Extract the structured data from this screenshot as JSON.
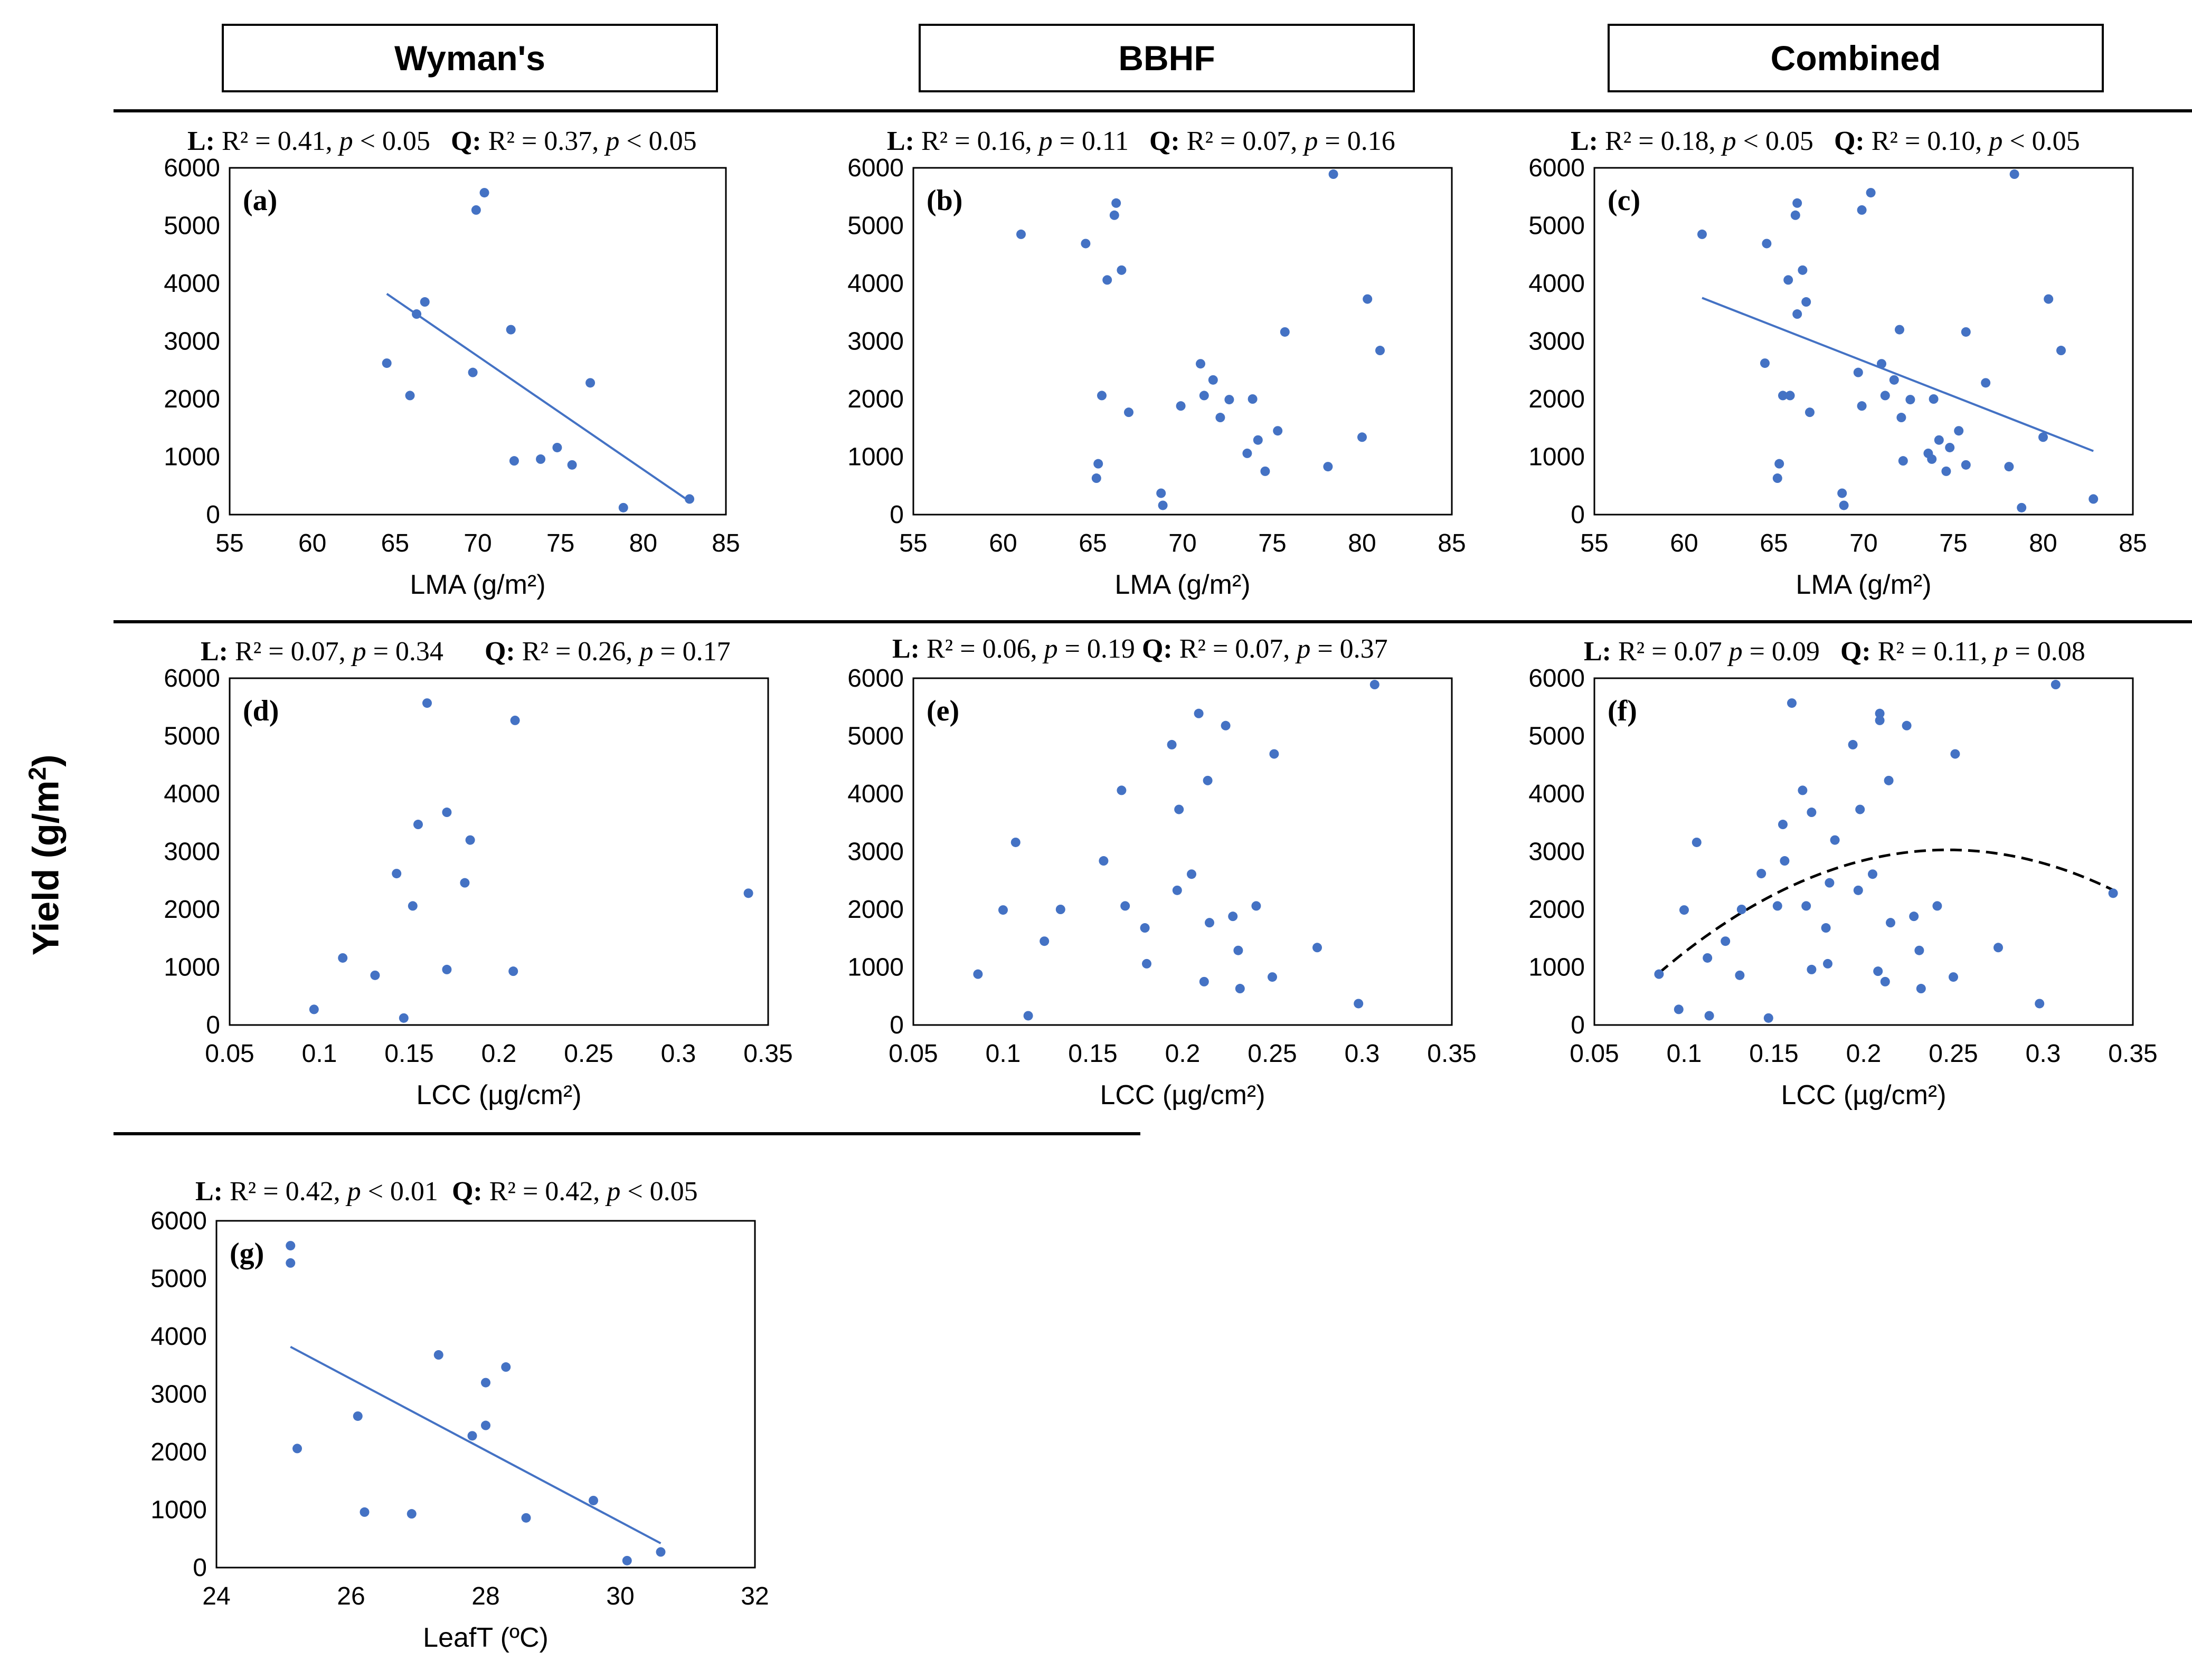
{
  "header": {
    "col1": "Wyman's",
    "col2": "BBHF",
    "col3": "Combined"
  },
  "y_axis_title": "Yield (g/m",
  "y_axis_title_sup": "2",
  "y_axis_title_end": ")",
  "colors": {
    "point": "#4472C4",
    "line": "#4472C4",
    "quad": "#000000"
  },
  "stats": {
    "a": {
      "L_lbl": "L:",
      "L_r2": "R² = 0.41, ",
      "L_p": "p",
      "L_val": " < 0.05",
      "Q_lbl": "Q:",
      "Q_r2": "R² = 0.37, ",
      "Q_p": "p",
      "Q_val": " < 0.05"
    },
    "b": {
      "L_lbl": "L:",
      "L_r2": "R² = 0.16, ",
      "L_p": "p",
      "L_val": " = 0.11",
      "Q_lbl": "Q:",
      "Q_r2": "R² = 0.07, ",
      "Q_p": "p",
      "Q_val": " = 0.16"
    },
    "c": {
      "L_lbl": "L:",
      "L_r2": "R² = 0.18, ",
      "L_p": "p",
      "L_val": " < 0.05",
      "Q_lbl": "Q:",
      "Q_r2": "R² = 0.10, ",
      "Q_p": "p",
      "Q_val": " < 0.05"
    },
    "d": {
      "L_lbl": "L:",
      "L_r2": "R² = 0.07, ",
      "L_p": "p",
      "L_val": " = 0.34",
      "Q_lbl": "Q:",
      "Q_r2": "R² = 0.26, ",
      "Q_p": "p",
      "Q_val": " = 0.17"
    },
    "e": {
      "L_lbl": "L:",
      "L_r2": "R² = 0.06, ",
      "L_p": "p",
      "L_val": " = 0.19",
      "Q_lbl": "Q:",
      "Q_r2": "R² = 0.07, ",
      "Q_p": "p",
      "Q_val": " = 0.37"
    },
    "f": {
      "L_lbl": "L:",
      "L_r2": "R² = 0.07 ",
      "L_p": "p",
      "L_val": " = 0.09",
      "Q_lbl": "Q:",
      "Q_r2": "R² = 0.11, ",
      "Q_p": "p",
      "Q_val": " = 0.08"
    },
    "g": {
      "L_lbl": "L:",
      "L_r2": "R² = 0.42, ",
      "L_p": "p",
      "L_val": " < 0.01",
      "Q_lbl": "Q:",
      "Q_r2": "R² = 0.42, ",
      "Q_p": "p",
      "Q_val": " < 0.05"
    }
  },
  "chart_data": [
    {
      "id": "a",
      "type": "scatter",
      "panel_label": "(a)",
      "xlabel": "LMA (g/m²)",
      "xlim": [
        55,
        85
      ],
      "xticks": [
        55,
        60,
        65,
        70,
        75,
        80,
        85
      ],
      "ylim": [
        0,
        6000
      ],
      "yticks": [
        0,
        1000,
        2000,
        3000,
        4000,
        5000,
        6000
      ],
      "x": [
        64.5,
        65.9,
        66.3,
        66.8,
        69.7,
        69.9,
        70.4,
        72.0,
        72.2,
        73.8,
        74.8,
        75.7,
        76.8,
        78.8,
        82.8
      ],
      "y": [
        2620,
        2060,
        3470,
        3680,
        2460,
        5270,
        5570,
        3200,
        930,
        960,
        1160,
        860,
        2280,
        120,
        270
      ],
      "trend": {
        "kind": "linear",
        "x": [
          64.5,
          82.8
        ],
        "y": [
          3820,
          230
        ]
      }
    },
    {
      "id": "b",
      "type": "scatter",
      "panel_label": "(b)",
      "xlabel": "LMA (g/m²)",
      "xlim": [
        55,
        85
      ],
      "xticks": [
        55,
        60,
        65,
        70,
        75,
        80,
        85
      ],
      "ylim": [
        0,
        6000
      ],
      "yticks": [
        0,
        1000,
        2000,
        3000,
        4000,
        5000,
        6000
      ],
      "x": [
        61.0,
        64.6,
        65.2,
        65.3,
        65.5,
        65.8,
        66.2,
        66.3,
        66.6,
        67.0,
        68.8,
        68.9,
        69.9,
        71.0,
        71.2,
        71.7,
        72.1,
        72.6,
        73.6,
        73.9,
        74.2,
        74.6,
        75.3,
        75.7,
        78.1,
        78.4,
        80.0,
        80.3,
        81.0
      ],
      "y": [
        4850,
        4690,
        630,
        880,
        2060,
        4060,
        5180,
        5390,
        4230,
        1770,
        370,
        160,
        1880,
        2610,
        2060,
        2330,
        1680,
        1990,
        1060,
        2000,
        1290,
        750,
        1450,
        3160,
        830,
        5890,
        1340,
        3730,
        2840
      ]
    },
    {
      "id": "c",
      "type": "scatter",
      "panel_label": "(c)",
      "xlabel": "LMA (g/m²)",
      "xlim": [
        55,
        85
      ],
      "xticks": [
        55,
        60,
        65,
        70,
        75,
        80,
        85
      ],
      "ylim": [
        0,
        6000
      ],
      "yticks": [
        0,
        1000,
        2000,
        3000,
        4000,
        5000,
        6000
      ],
      "x": [
        61.0,
        64.5,
        64.6,
        65.2,
        65.3,
        65.5,
        65.8,
        65.9,
        66.2,
        66.3,
        66.3,
        66.6,
        66.8,
        67.0,
        68.8,
        68.9,
        69.7,
        69.9,
        69.9,
        70.4,
        71.0,
        71.2,
        71.7,
        72.0,
        72.1,
        72.2,
        72.6,
        73.6,
        73.8,
        73.9,
        74.2,
        74.6,
        74.8,
        75.3,
        75.7,
        75.7,
        76.8,
        78.1,
        78.4,
        78.8,
        80.0,
        80.3,
        81.0,
        82.8
      ],
      "y": [
        4850,
        2620,
        4690,
        630,
        880,
        2060,
        4060,
        2060,
        5180,
        5390,
        3470,
        4230,
        3680,
        1770,
        370,
        160,
        2460,
        1880,
        5270,
        5570,
        2610,
        2060,
        2330,
        3200,
        1680,
        930,
        1990,
        1060,
        960,
        2000,
        1290,
        750,
        1160,
        1450,
        3160,
        860,
        2280,
        830,
        5890,
        120,
        1340,
        3730,
        2840,
        270
      ],
      "trend": {
        "kind": "linear",
        "x": [
          61.0,
          82.8
        ],
        "y": [
          3750,
          1100
        ]
      }
    },
    {
      "id": "d",
      "type": "scatter",
      "panel_label": "(d)",
      "xlabel": "LCC (µg/cm²)",
      "xlim": [
        0.05,
        0.35
      ],
      "xticks": [
        0.05,
        0.1,
        0.15,
        0.2,
        0.25,
        0.3,
        0.35
      ],
      "ylim": [
        0,
        6000
      ],
      "yticks": [
        0,
        1000,
        2000,
        3000,
        4000,
        5000,
        6000
      ],
      "x": [
        0.097,
        0.113,
        0.131,
        0.143,
        0.147,
        0.152,
        0.155,
        0.16,
        0.171,
        0.171,
        0.181,
        0.184,
        0.208,
        0.209,
        0.339
      ],
      "y": [
        270,
        1160,
        860,
        2620,
        120,
        2060,
        3470,
        5570,
        3680,
        960,
        2460,
        3200,
        930,
        5270,
        2280
      ]
    },
    {
      "id": "e",
      "type": "scatter",
      "panel_label": "(e)",
      "xlabel": "LCC (µg/cm²)",
      "xlim": [
        0.05,
        0.35
      ],
      "xticks": [
        0.05,
        0.1,
        0.15,
        0.2,
        0.25,
        0.3,
        0.35
      ],
      "ylim": [
        0,
        6000
      ],
      "yticks": [
        0,
        1000,
        2000,
        3000,
        4000,
        5000,
        6000
      ],
      "x": [
        0.086,
        0.1,
        0.107,
        0.114,
        0.123,
        0.132,
        0.156,
        0.166,
        0.168,
        0.179,
        0.18,
        0.194,
        0.197,
        0.198,
        0.205,
        0.209,
        0.212,
        0.214,
        0.215,
        0.224,
        0.228,
        0.231,
        0.232,
        0.241,
        0.25,
        0.251,
        0.275,
        0.298,
        0.307
      ],
      "y": [
        880,
        1990,
        3160,
        160,
        1450,
        2000,
        2840,
        4060,
        2060,
        1680,
        1060,
        4850,
        2330,
        3730,
        2610,
        5390,
        750,
        4230,
        1770,
        5180,
        1880,
        1290,
        630,
        2060,
        830,
        4690,
        1340,
        370,
        5890
      ]
    },
    {
      "id": "f",
      "type": "scatter",
      "panel_label": "(f)",
      "xlabel": "LCC (µg/cm²)",
      "xlim": [
        0.05,
        0.35
      ],
      "xticks": [
        0.05,
        0.1,
        0.15,
        0.2,
        0.25,
        0.3,
        0.35
      ],
      "ylim": [
        0,
        6000
      ],
      "yticks": [
        0,
        1000,
        2000,
        3000,
        4000,
        5000,
        6000
      ],
      "x": [
        0.086,
        0.097,
        0.1,
        0.107,
        0.113,
        0.114,
        0.123,
        0.131,
        0.132,
        0.143,
        0.147,
        0.152,
        0.155,
        0.156,
        0.16,
        0.166,
        0.168,
        0.171,
        0.171,
        0.179,
        0.18,
        0.181,
        0.184,
        0.194,
        0.197,
        0.198,
        0.205,
        0.208,
        0.209,
        0.209,
        0.212,
        0.214,
        0.215,
        0.224,
        0.228,
        0.231,
        0.232,
        0.241,
        0.25,
        0.251,
        0.275,
        0.298,
        0.307,
        0.339
      ],
      "y": [
        880,
        270,
        1990,
        3160,
        1160,
        160,
        1450,
        860,
        2000,
        2620,
        120,
        2060,
        3470,
        2840,
        5570,
        4060,
        2060,
        3680,
        960,
        1680,
        1060,
        2460,
        3200,
        4850,
        2330,
        3730,
        2610,
        930,
        5270,
        5390,
        750,
        4230,
        1770,
        5180,
        1880,
        1290,
        630,
        2060,
        830,
        4690,
        1340,
        370,
        5890,
        2280
      ],
      "trend": {
        "kind": "quadratic",
        "x_range": [
          0.086,
          0.339
        ],
        "vertex_x": 0.247,
        "vertex_y": 3030,
        "y_at_start": 900
      }
    },
    {
      "id": "g",
      "type": "scatter",
      "panel_label": "(g)",
      "xlabel": "LeafT (ºC)",
      "xlim": [
        24,
        32
      ],
      "xticks": [
        24,
        26,
        28,
        30,
        32
      ],
      "ylim": [
        0,
        6000
      ],
      "yticks": [
        0,
        1000,
        2000,
        3000,
        4000,
        5000,
        6000
      ],
      "x": [
        25.1,
        25.1,
        25.2,
        26.1,
        26.2,
        26.9,
        27.3,
        27.8,
        28.0,
        28.0,
        28.3,
        28.6,
        29.6,
        30.1,
        30.6
      ],
      "y": [
        5570,
        5270,
        2060,
        2620,
        960,
        930,
        3680,
        2280,
        3200,
        2460,
        3470,
        860,
        1160,
        120,
        270
      ],
      "trend": {
        "kind": "linear",
        "x": [
          25.1,
          30.6
        ],
        "y": [
          3820,
          420
        ]
      }
    }
  ]
}
